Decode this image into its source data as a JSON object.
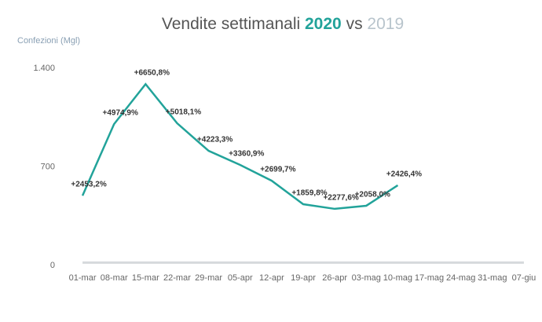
{
  "chart_data": {
    "type": "line",
    "title": "Vendite settimanali",
    "title_joiner": "vs",
    "y_label": "Confezioni (Mgl)",
    "categories": [
      "01-mar",
      "08-mar",
      "15-mar",
      "22-mar",
      "29-mar",
      "05-apr",
      "12-apr",
      "19-apr",
      "26-apr",
      "03-mag",
      "10-mag",
      "17-mag",
      "24-mag",
      "31-mag",
      "07-giu"
    ],
    "series": [
      {
        "name": "2020",
        "color": "#22a39a",
        "values": [
          496,
          1004,
          1288,
          1010,
          814,
          714,
          602,
          435,
          402,
          424,
          569,
          null,
          null,
          null,
          null
        ],
        "value_labels": [
          "+2453,2%",
          "+4974,9%",
          "+6650,8%",
          "+5018,1%",
          "+4223,3%",
          "+3360,9%",
          "+2699,7%",
          "+1859,8%",
          "+2277,6%",
          "+2058,0%",
          "+2426,4%",
          null,
          null,
          null,
          null
        ]
      },
      {
        "name": "2019",
        "color": "#d6d9dc",
        "values": [
          20,
          20,
          20,
          20,
          20,
          20,
          20,
          20,
          20,
          20,
          20,
          20,
          20,
          20,
          20
        ]
      }
    ],
    "ylim": [
      0,
      1400
    ],
    "yticks": [
      0,
      700,
      {
        "value": 1400,
        "label": "1.400"
      }
    ]
  }
}
